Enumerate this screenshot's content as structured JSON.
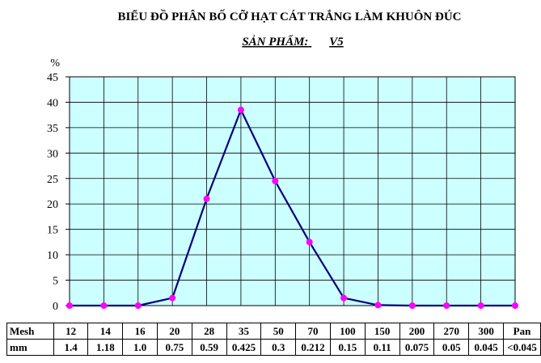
{
  "chart_data": {
    "type": "line",
    "title": "BIỂU ĐỒ PHÂN BỐ CỠ HẠT CÁT TRẮNG LÀM KHUÔN ĐÚC",
    "subtitle_label": "SẢN PHẨM:",
    "subtitle_value": "V5",
    "ylabel": "%",
    "ylim": [
      0,
      45
    ],
    "yticks": [
      "0",
      "5",
      "10",
      "15",
      "20",
      "25",
      "30",
      "35",
      "40",
      "45"
    ],
    "grid": true,
    "categories": [
      "12",
      "14",
      "16",
      "20",
      "28",
      "35",
      "50",
      "70",
      "100",
      "150",
      "200",
      "270",
      "300",
      "Pan"
    ],
    "values": [
      0,
      0,
      0,
      1.5,
      21,
      38.5,
      24.5,
      12.5,
      1.5,
      0.1,
      0,
      0,
      0,
      0
    ],
    "colors": {
      "plot_bg": "#ccffff",
      "line": "#000080",
      "marker": "#ff00ff"
    }
  },
  "table": {
    "row1_label": "Mesh",
    "row2_label": "mm",
    "mesh": [
      "12",
      "14",
      "16",
      "20",
      "28",
      "35",
      "50",
      "70",
      "100",
      "150",
      "200",
      "270",
      "300",
      "Pan"
    ],
    "mm": [
      "1.4",
      "1.18",
      "1.0",
      "0.75",
      "0.59",
      "0.425",
      "0.3",
      "0.212",
      "0.15",
      "0.11",
      "0.075",
      "0.05",
      "0.045",
      "<0.045"
    ]
  }
}
